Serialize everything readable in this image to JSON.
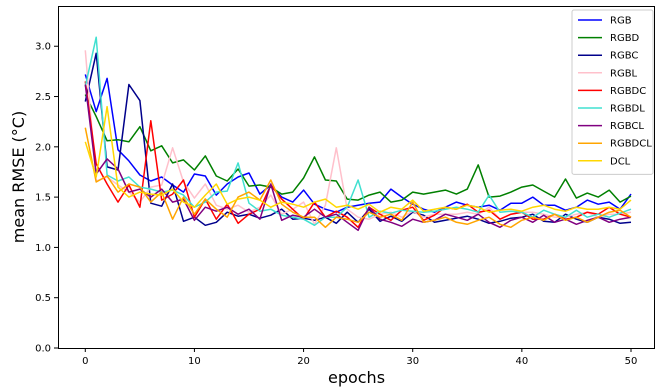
{
  "chart_data": {
    "type": "line",
    "xlabel": "epochs",
    "ylabel": "mean RMSE (°C)",
    "xlim": [
      -2.5,
      52.2
    ],
    "ylim": [
      0,
      3.4
    ],
    "xticks": [
      0,
      10,
      20,
      30,
      40,
      50
    ],
    "yticks": [
      0.0,
      0.5,
      1.0,
      1.5,
      2.0,
      2.5,
      3.0
    ],
    "xtick_labels": [
      "0",
      "10",
      "20",
      "30",
      "40",
      "50"
    ],
    "ytick_labels": [
      "0.0",
      "0.5",
      "1.0",
      "1.5",
      "2.0",
      "2.5",
      "3.0"
    ],
    "grid": false,
    "legend_position": "top-right",
    "x": [
      0,
      1,
      2,
      3,
      4,
      5,
      6,
      7,
      8,
      9,
      10,
      11,
      12,
      13,
      14,
      15,
      16,
      17,
      18,
      19,
      20,
      21,
      22,
      23,
      24,
      25,
      26,
      27,
      28,
      29,
      30,
      31,
      32,
      33,
      34,
      35,
      36,
      37,
      38,
      39,
      40,
      41,
      42,
      43,
      44,
      45,
      46,
      47,
      48,
      49,
      50
    ],
    "series": [
      {
        "name": "RGB",
        "color": "#0000ff",
        "values": [
          2.72,
          2.35,
          2.68,
          1.97,
          1.86,
          1.72,
          1.66,
          1.7,
          1.62,
          1.55,
          1.73,
          1.71,
          1.52,
          1.63,
          1.7,
          1.74,
          1.53,
          1.62,
          1.5,
          1.45,
          1.57,
          1.43,
          1.38,
          1.35,
          1.4,
          1.42,
          1.44,
          1.45,
          1.58,
          1.5,
          1.43,
          1.38,
          1.35,
          1.4,
          1.45,
          1.42,
          1.4,
          1.42,
          1.37,
          1.44,
          1.44,
          1.5,
          1.42,
          1.42,
          1.37,
          1.4,
          1.47,
          1.43,
          1.45,
          1.38,
          1.53
        ]
      },
      {
        "name": "RGBD",
        "color": "#008000",
        "values": [
          2.52,
          2.3,
          2.06,
          2.07,
          2.05,
          2.2,
          1.96,
          2.01,
          1.84,
          1.87,
          1.77,
          1.91,
          1.71,
          1.66,
          1.78,
          1.61,
          1.62,
          1.6,
          1.53,
          1.55,
          1.69,
          1.9,
          1.67,
          1.66,
          1.48,
          1.47,
          1.52,
          1.55,
          1.45,
          1.47,
          1.55,
          1.53,
          1.55,
          1.57,
          1.53,
          1.58,
          1.82,
          1.5,
          1.51,
          1.55,
          1.6,
          1.62,
          1.56,
          1.5,
          1.68,
          1.49,
          1.54,
          1.5,
          1.57,
          1.45,
          1.51
        ]
      },
      {
        "name": "RGBC",
        "color": "#00008b",
        "values": [
          2.45,
          2.93,
          1.8,
          1.77,
          2.62,
          2.46,
          1.44,
          1.41,
          1.63,
          1.26,
          1.3,
          1.22,
          1.25,
          1.35,
          1.31,
          1.33,
          1.29,
          1.32,
          1.38,
          1.28,
          1.29,
          1.27,
          1.3,
          1.24,
          1.35,
          1.25,
          1.38,
          1.26,
          1.31,
          1.26,
          1.35,
          1.32,
          1.25,
          1.27,
          1.29,
          1.31,
          1.28,
          1.24,
          1.26,
          1.29,
          1.3,
          1.33,
          1.26,
          1.25,
          1.33,
          1.28,
          1.25,
          1.3,
          1.28,
          1.24,
          1.25
        ]
      },
      {
        "name": "RGBL",
        "color": "#ffc0cb",
        "values": [
          2.96,
          1.66,
          1.7,
          1.62,
          1.55,
          1.45,
          1.6,
          1.62,
          1.99,
          1.65,
          1.49,
          1.63,
          1.42,
          1.38,
          1.42,
          1.35,
          1.4,
          1.52,
          1.33,
          1.38,
          1.45,
          1.23,
          1.42,
          1.99,
          1.38,
          1.3,
          1.28,
          1.33,
          1.35,
          1.3,
          1.36,
          1.3,
          1.33,
          1.33,
          1.33,
          1.35,
          1.33,
          1.4,
          1.28,
          1.33,
          1.35,
          1.35,
          1.33,
          1.3,
          1.3,
          1.33,
          1.35,
          1.3,
          1.33,
          1.33,
          1.35
        ]
      },
      {
        "name": "RGBDC",
        "color": "#ff0000",
        "values": [
          2.65,
          1.83,
          1.63,
          1.45,
          1.62,
          1.4,
          2.26,
          1.47,
          1.53,
          1.67,
          1.3,
          1.48,
          1.28,
          1.43,
          1.24,
          1.33,
          1.38,
          1.62,
          1.48,
          1.38,
          1.28,
          1.45,
          1.3,
          1.36,
          1.3,
          1.2,
          1.4,
          1.33,
          1.27,
          1.37,
          1.4,
          1.27,
          1.32,
          1.4,
          1.38,
          1.43,
          1.35,
          1.37,
          1.28,
          1.33,
          1.35,
          1.28,
          1.28,
          1.33,
          1.28,
          1.3,
          1.35,
          1.33,
          1.4,
          1.33,
          1.3
        ]
      },
      {
        "name": "RGBDL",
        "color": "#40e0d0",
        "values": [
          2.6,
          3.09,
          1.72,
          1.66,
          1.7,
          1.6,
          1.58,
          1.55,
          1.57,
          1.52,
          1.4,
          1.45,
          1.55,
          1.56,
          1.84,
          1.44,
          1.36,
          1.38,
          1.32,
          1.3,
          1.28,
          1.22,
          1.3,
          1.3,
          1.4,
          1.67,
          1.3,
          1.36,
          1.34,
          1.37,
          1.36,
          1.35,
          1.36,
          1.38,
          1.4,
          1.38,
          1.35,
          1.52,
          1.35,
          1.36,
          1.35,
          1.3,
          1.37,
          1.33,
          1.3,
          1.37,
          1.3,
          1.33,
          1.3,
          1.34,
          1.38
        ]
      },
      {
        "name": "RGBCL",
        "color": "#800080",
        "values": [
          2.62,
          1.73,
          1.88,
          1.78,
          1.55,
          1.58,
          1.5,
          1.58,
          1.45,
          1.48,
          1.27,
          1.4,
          1.36,
          1.4,
          1.33,
          1.38,
          1.28,
          1.63,
          1.27,
          1.32,
          1.3,
          1.38,
          1.3,
          1.33,
          1.25,
          1.17,
          1.4,
          1.28,
          1.25,
          1.21,
          1.28,
          1.25,
          1.27,
          1.33,
          1.3,
          1.27,
          1.33,
          1.25,
          1.2,
          1.27,
          1.3,
          1.25,
          1.32,
          1.25,
          1.28,
          1.23,
          1.27,
          1.3,
          1.25,
          1.28,
          1.3
        ]
      },
      {
        "name": "RGBDCL",
        "color": "#ffa500",
        "values": [
          2.19,
          1.65,
          1.71,
          1.55,
          1.63,
          1.6,
          1.45,
          1.55,
          1.28,
          1.5,
          1.33,
          1.48,
          1.38,
          1.3,
          1.5,
          1.55,
          1.47,
          1.67,
          1.43,
          1.35,
          1.3,
          1.3,
          1.2,
          1.3,
          1.28,
          1.25,
          1.35,
          1.3,
          1.33,
          1.27,
          1.45,
          1.25,
          1.27,
          1.3,
          1.25,
          1.23,
          1.27,
          1.3,
          1.23,
          1.2,
          1.27,
          1.3,
          1.27,
          1.33,
          1.27,
          1.3,
          1.25,
          1.3,
          1.35,
          1.37,
          1.3
        ]
      },
      {
        "name": "DCL",
        "color": "#ffd700",
        "values": [
          2.05,
          1.7,
          2.4,
          1.6,
          1.5,
          1.55,
          1.53,
          1.52,
          1.58,
          1.45,
          1.4,
          1.52,
          1.63,
          1.43,
          1.48,
          1.5,
          1.47,
          1.4,
          1.45,
          1.43,
          1.4,
          1.45,
          1.48,
          1.4,
          1.42,
          1.38,
          1.43,
          1.35,
          1.4,
          1.38,
          1.47,
          1.36,
          1.38,
          1.4,
          1.38,
          1.42,
          1.4,
          1.35,
          1.37,
          1.38,
          1.36,
          1.4,
          1.42,
          1.38,
          1.36,
          1.4,
          1.38,
          1.38,
          1.4,
          1.38,
          1.47
        ]
      }
    ]
  }
}
